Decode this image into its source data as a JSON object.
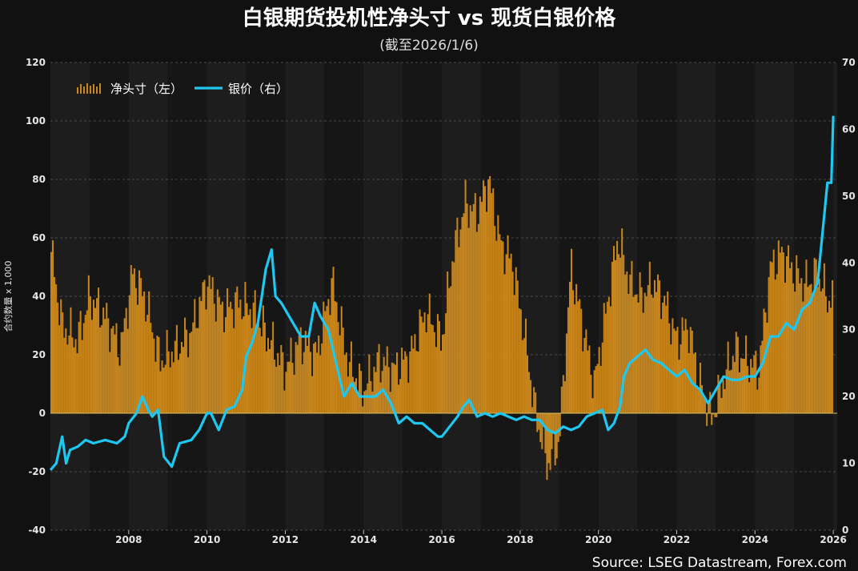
{
  "chart_data": {
    "type": "bar+line",
    "title": "白银期货投机性净头寸 vs 现货白银价格",
    "subtitle": "(截至2026/1/6)",
    "ylabel_left": "合约数量 x 1,000",
    "source": "Source: LSEG Datastream, Forex.com",
    "x_range": [
      2006,
      2026.1
    ],
    "x_ticks": [
      "2008",
      "2010",
      "2012",
      "2014",
      "2016",
      "2018",
      "2020",
      "2022",
      "2024",
      "2026"
    ],
    "x_tick_values": [
      2008,
      2010,
      2012,
      2014,
      2016,
      2018,
      2020,
      2022,
      2024,
      2026
    ],
    "ylim_left": [
      -40,
      120
    ],
    "yticks_left": [
      "-40",
      "-20",
      "0",
      "20",
      "40",
      "60",
      "80",
      "100",
      "120"
    ],
    "ylim_right": [
      0,
      70
    ],
    "yticks_right": [
      "0",
      "10",
      "20",
      "30",
      "40",
      "50",
      "60",
      "70"
    ],
    "bar_color": "#c8861c",
    "line_color": "#1ec8f0",
    "legend": [
      {
        "name": "净头寸（左）",
        "type": "bar"
      },
      {
        "name": "银价（右）",
        "type": "line"
      }
    ],
    "net_position_anchors": {
      "x": [
        2006.0,
        2006.3,
        2006.7,
        2007.0,
        2007.4,
        2007.8,
        2008.1,
        2008.4,
        2008.8,
        2009.2,
        2009.6,
        2010.0,
        2010.4,
        2010.8,
        2011.2,
        2011.6,
        2012.0,
        2012.4,
        2012.8,
        2013.2,
        2013.6,
        2014.0,
        2014.4,
        2014.8,
        2015.2,
        2015.6,
        2016.0,
        2016.3,
        2016.6,
        2016.9,
        2017.2,
        2017.5,
        2017.8,
        2018.1,
        2018.4,
        2018.7,
        2019.0,
        2019.3,
        2019.6,
        2019.9,
        2020.2,
        2020.5,
        2020.8,
        2021.1,
        2021.4,
        2021.7,
        2022.0,
        2022.3,
        2022.6,
        2022.9,
        2023.2,
        2023.5,
        2023.8,
        2024.1,
        2024.4,
        2024.7,
        2025.0,
        2025.3,
        2025.6,
        2025.9,
        2026.0
      ],
      "values": [
        57,
        30,
        25,
        40,
        33,
        22,
        48,
        40,
        18,
        22,
        28,
        45,
        35,
        38,
        35,
        25,
        15,
        25,
        20,
        45,
        18,
        8,
        18,
        15,
        20,
        35,
        25,
        55,
        72,
        68,
        80,
        58,
        52,
        28,
        0,
        -18,
        -10,
        50,
        30,
        10,
        35,
        60,
        45,
        40,
        45,
        38,
        25,
        30,
        10,
        -2,
        12,
        22,
        18,
        15,
        50,
        55,
        48,
        44,
        48,
        38,
        42
      ]
    },
    "silver_price": {
      "x": [
        2006.0,
        2006.15,
        2006.3,
        2006.4,
        2006.5,
        2006.7,
        2006.9,
        2007.1,
        2007.4,
        2007.7,
        2007.9,
        2008.0,
        2008.2,
        2008.35,
        2008.5,
        2008.6,
        2008.75,
        2008.9,
        2009.1,
        2009.3,
        2009.6,
        2009.8,
        2010.0,
        2010.1,
        2010.3,
        2010.5,
        2010.7,
        2010.9,
        2011.0,
        2011.15,
        2011.3,
        2011.5,
        2011.65,
        2011.75,
        2011.9,
        2012.0,
        2012.2,
        2012.4,
        2012.6,
        2012.75,
        2012.9,
        2013.1,
        2013.3,
        2013.5,
        2013.7,
        2013.9,
        2014.1,
        2014.3,
        2014.5,
        2014.7,
        2014.9,
        2015.1,
        2015.3,
        2015.5,
        2015.7,
        2015.9,
        2016.0,
        2016.2,
        2016.4,
        2016.55,
        2016.7,
        2016.9,
        2017.1,
        2017.3,
        2017.5,
        2017.7,
        2017.9,
        2018.1,
        2018.3,
        2018.5,
        2018.7,
        2018.9,
        2019.1,
        2019.3,
        2019.5,
        2019.7,
        2019.9,
        2020.1,
        2020.25,
        2020.4,
        2020.55,
        2020.65,
        2020.8,
        2021.0,
        2021.2,
        2021.4,
        2021.6,
        2021.8,
        2022.0,
        2022.2,
        2022.4,
        2022.6,
        2022.8,
        2023.0,
        2023.2,
        2023.4,
        2023.6,
        2023.8,
        2024.0,
        2024.2,
        2024.4,
        2024.6,
        2024.8,
        2025.0,
        2025.2,
        2025.4,
        2025.6,
        2025.75,
        2025.85,
        2025.95,
        2026.0
      ],
      "values": [
        9,
        10,
        14,
        10,
        12,
        12.5,
        13.5,
        13,
        13.5,
        13,
        14,
        16,
        17.5,
        20,
        18,
        17,
        18,
        11,
        9.5,
        13,
        13.5,
        15,
        17.5,
        17.5,
        15,
        18,
        18.5,
        21,
        26,
        28,
        31,
        39,
        42,
        35,
        34,
        33,
        31,
        29,
        29,
        34,
        32,
        30,
        25,
        20,
        22,
        20,
        20,
        20,
        21,
        19,
        16,
        17,
        16,
        16,
        15,
        14,
        14,
        15.5,
        17,
        18.5,
        19.5,
        17,
        17.5,
        17,
        17.5,
        17,
        16.5,
        17,
        16.5,
        16.5,
        15,
        14.5,
        15.5,
        15,
        15.5,
        17,
        17.5,
        18,
        15,
        16,
        18.5,
        23,
        25,
        26,
        27,
        25.5,
        25,
        24,
        23,
        24,
        22,
        21,
        19,
        21,
        23,
        22.5,
        22.5,
        23,
        23,
        25,
        29,
        29,
        31,
        30,
        33,
        34,
        37,
        46,
        52,
        52,
        62
      ]
    }
  }
}
